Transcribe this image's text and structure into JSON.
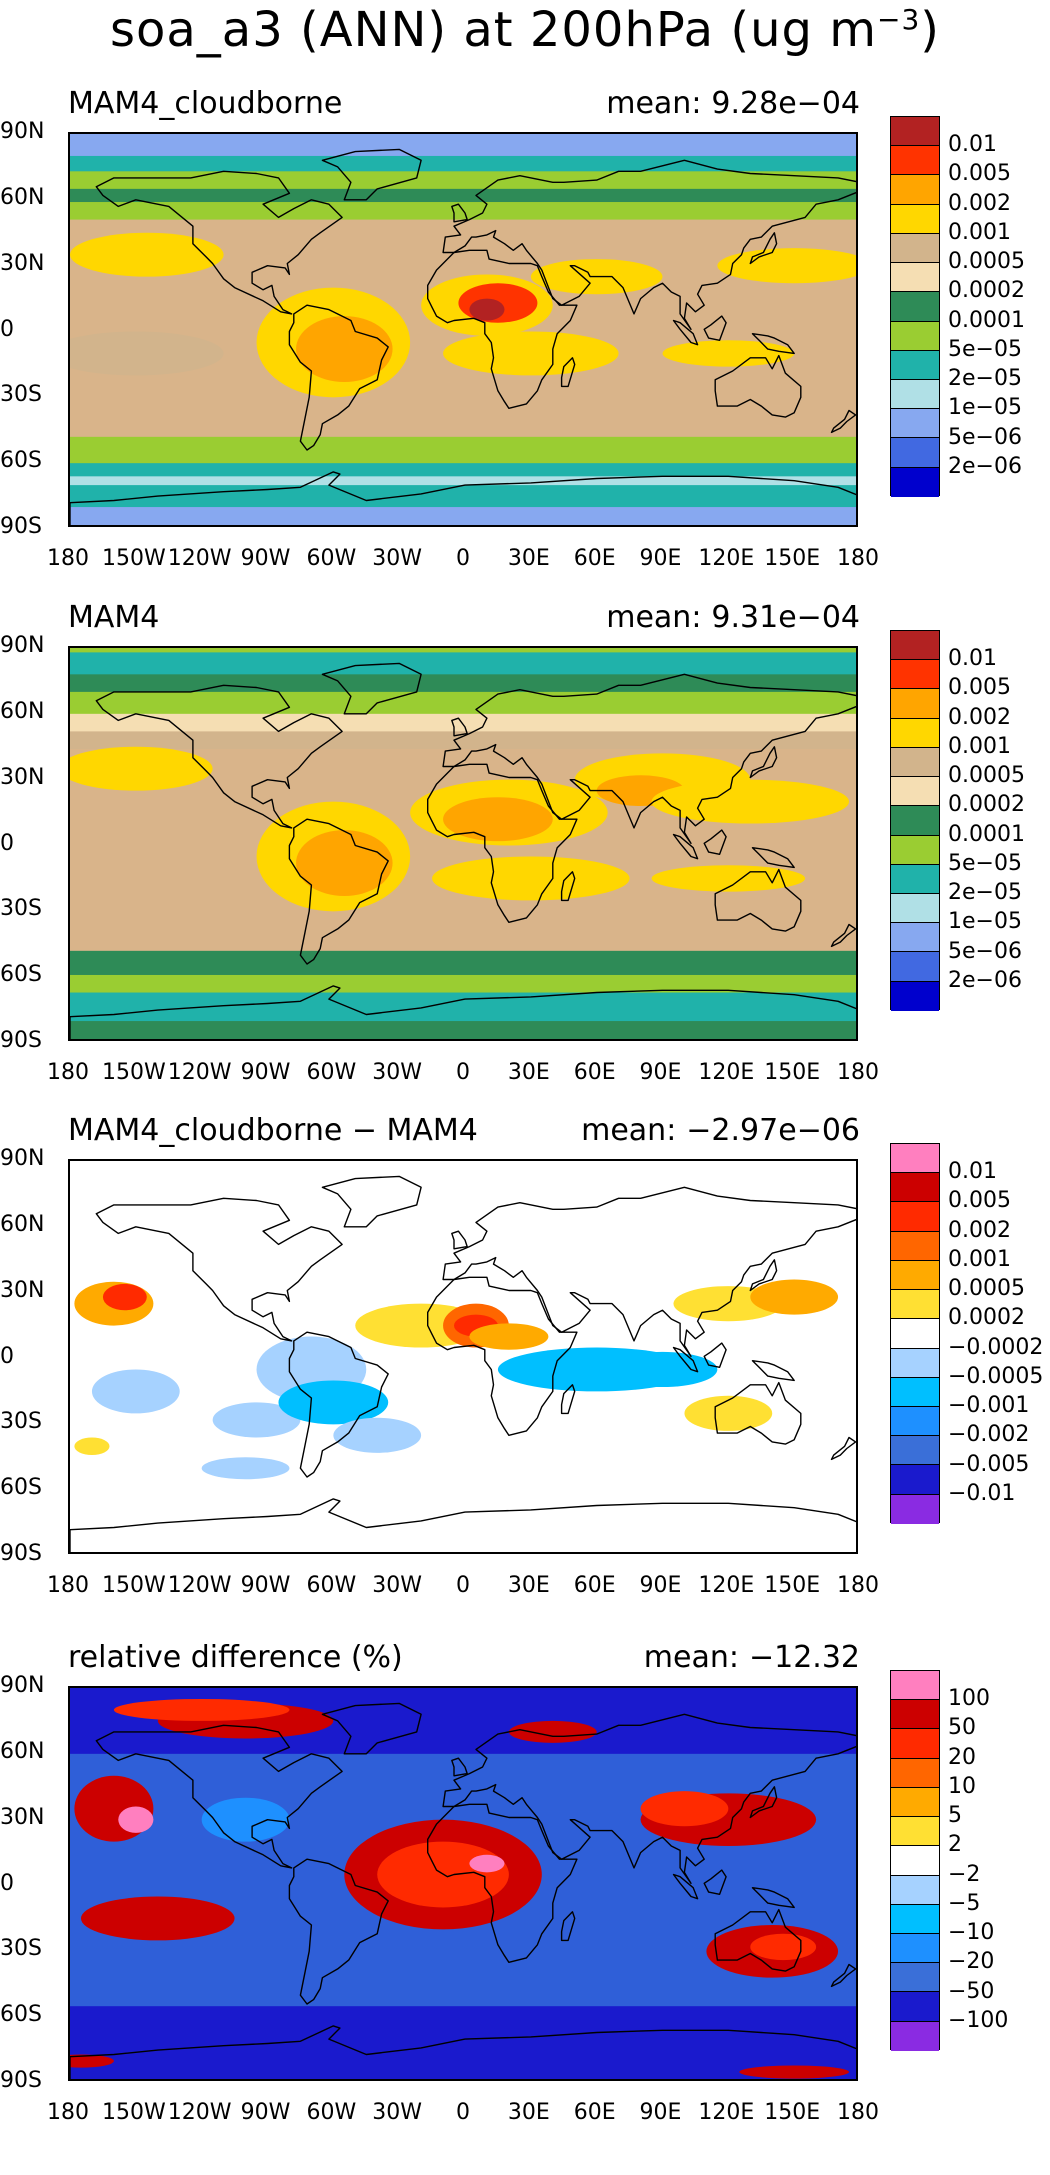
{
  "title": {
    "text": "soa_a3 (ANN) at 200hPa (ug m",
    "superscript": "−3",
    "close": ")"
  },
  "lat_ticks": [
    "90N",
    "60N",
    "30N",
    "0",
    "30S",
    "60S",
    "90S"
  ],
  "lon_ticks": [
    "180",
    "150W",
    "120W",
    "90W",
    "60W",
    "30W",
    "0",
    "30E",
    "60E",
    "90E",
    "120E",
    "150E",
    "180"
  ],
  "panels": [
    {
      "label": "MAM4_cloudborne",
      "mean_key": "mean:",
      "mean_value": "9.28e−04",
      "background": "#d9b48a",
      "colorbar": {
        "colors": [
          "#b22222",
          "#ff3300",
          "#ffa500",
          "#ffd700",
          "#d2b48c",
          "#f5deb3",
          "#2e8b57",
          "#9acd32",
          "#20b2aa",
          "#b0e0e6",
          "#87a8f0",
          "#4169e1",
          "#0000cd"
        ],
        "labels": [
          "0.01",
          "0.005",
          "0.002",
          "0.001",
          "0.0005",
          "0.0002",
          "0.0001",
          "5e−05",
          "2e−05",
          "1e−05",
          "5e−06",
          "2e−06"
        ]
      }
    },
    {
      "label": "MAM4",
      "mean_key": "mean:",
      "mean_value": "9.31e−04",
      "background": "#d9b48a",
      "colorbar": {
        "colors": [
          "#b22222",
          "#ff3300",
          "#ffa500",
          "#ffd700",
          "#d2b48c",
          "#f5deb3",
          "#2e8b57",
          "#9acd32",
          "#20b2aa",
          "#b0e0e6",
          "#87a8f0",
          "#4169e1",
          "#0000cd"
        ],
        "labels": [
          "0.01",
          "0.005",
          "0.002",
          "0.001",
          "0.0005",
          "0.0002",
          "0.0001",
          "5e−05",
          "2e−05",
          "1e−05",
          "5e−06",
          "2e−06"
        ]
      }
    },
    {
      "label": "MAM4_cloudborne − MAM4",
      "mean_key": "mean:",
      "mean_value": "−2.97e−06",
      "background": "#ffffff",
      "colorbar": {
        "colors": [
          "#ff7fbf",
          "#cc0000",
          "#ff2a00",
          "#ff6600",
          "#ffaa00",
          "#ffe033",
          "#ffffff",
          "#a6d2ff",
          "#00bfff",
          "#1e90ff",
          "#3a6fd8",
          "#1a1acd",
          "#8a2be2"
        ],
        "labels": [
          "0.01",
          "0.005",
          "0.002",
          "0.001",
          "0.0005",
          "0.0002",
          "−0.0002",
          "−0.0005",
          "−0.001",
          "−0.002",
          "−0.005",
          "−0.01"
        ]
      }
    },
    {
      "label": "relative difference (%)",
      "mean_key": "mean:",
      "mean_value": "−12.32",
      "background": "#2f5fd8",
      "colorbar": {
        "colors": [
          "#ff7fbf",
          "#cc0000",
          "#ff2a00",
          "#ff6600",
          "#ffaa00",
          "#ffe033",
          "#ffffff",
          "#a6d2ff",
          "#00bfff",
          "#1e90ff",
          "#3a6fd8",
          "#1a1acd",
          "#8a2be2"
        ],
        "labels": [
          "100",
          "50",
          "20",
          "10",
          "5",
          "2",
          "−2",
          "−5",
          "−10",
          "−20",
          "−50",
          "−100"
        ]
      }
    }
  ]
}
